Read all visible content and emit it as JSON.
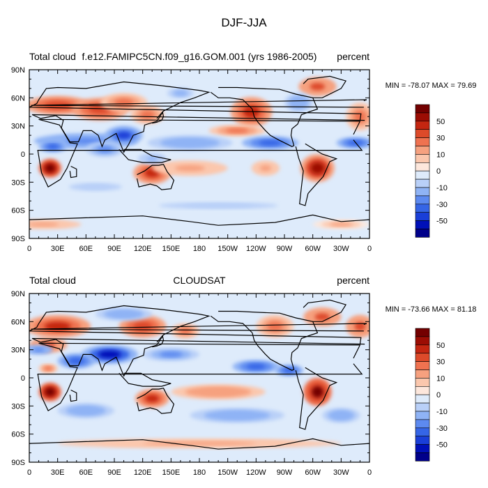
{
  "figure_title": "DJF-JJA",
  "chart_data": [
    {
      "type": "contour-map",
      "title_left": "Total cloud",
      "title_center": "f.e12.FAMIPC5CN.f09_g16.GOM.001 (yrs 1986-2005)",
      "title_right": "percent",
      "min_max": "MIN = -78.07 MAX =  79.69",
      "xlim": [
        0,
        360
      ],
      "ylim": [
        -90,
        90
      ],
      "x_ticks": [
        "0",
        "30E",
        "60E",
        "90E",
        "120E",
        "150E",
        "180",
        "150W",
        "120W",
        "90W",
        "60W",
        "30W",
        "0"
      ],
      "y_ticks": [
        "90N",
        "60N",
        "30N",
        "0",
        "30S",
        "60S",
        "90S"
      ],
      "colorbar_labels": [
        "50",
        "30",
        "10",
        "0",
        "-10",
        "-30",
        "-50"
      ],
      "blobs": [
        {
          "lon": 30,
          "lat": 52,
          "rx": 35,
          "ry": 10,
          "v": 35
        },
        {
          "lon": 75,
          "lat": 48,
          "rx": 30,
          "ry": 12,
          "v": 38
        },
        {
          "lon": 100,
          "lat": 55,
          "rx": 25,
          "ry": 10,
          "v": 28
        },
        {
          "lon": 125,
          "lat": 42,
          "rx": 18,
          "ry": 10,
          "v": 20
        },
        {
          "lon": 235,
          "lat": 45,
          "rx": 22,
          "ry": 16,
          "v": 40
        },
        {
          "lon": 305,
          "lat": 72,
          "rx": 20,
          "ry": 10,
          "v": 30
        },
        {
          "lon": 350,
          "lat": 40,
          "rx": 15,
          "ry": 15,
          "v": 25
        },
        {
          "lon": 22,
          "lat": -15,
          "rx": 12,
          "ry": 10,
          "v": 62
        },
        {
          "lon": 130,
          "lat": -20,
          "rx": 20,
          "ry": 12,
          "v": 45
        },
        {
          "lon": 305,
          "lat": -15,
          "rx": 18,
          "ry": 15,
          "v": 55
        },
        {
          "lon": 170,
          "lat": -15,
          "rx": 40,
          "ry": 8,
          "v": 15
        },
        {
          "lon": 250,
          "lat": -15,
          "rx": 15,
          "ry": 8,
          "v": 15
        },
        {
          "lon": 220,
          "lat": 25,
          "rx": 30,
          "ry": 6,
          "v": 20
        },
        {
          "lon": 60,
          "lat": 14,
          "rx": 55,
          "ry": 8,
          "v": -30
        },
        {
          "lon": 100,
          "lat": 20,
          "rx": 20,
          "ry": 10,
          "v": -45
        },
        {
          "lon": 80,
          "lat": 5,
          "rx": 20,
          "ry": 8,
          "v": -25
        },
        {
          "lon": 25,
          "lat": 8,
          "rx": 15,
          "ry": 6,
          "v": -35
        },
        {
          "lon": 170,
          "lat": 12,
          "rx": 45,
          "ry": 8,
          "v": -20
        },
        {
          "lon": 255,
          "lat": 12,
          "rx": 30,
          "ry": 7,
          "v": -40
        },
        {
          "lon": 345,
          "lat": 12,
          "rx": 20,
          "ry": 6,
          "v": -35
        },
        {
          "lon": 130,
          "lat": -5,
          "rx": 15,
          "ry": 6,
          "v": -15
        },
        {
          "lon": 70,
          "lat": -35,
          "rx": 40,
          "ry": 6,
          "v": -8
        },
        {
          "lon": 200,
          "lat": -55,
          "rx": 90,
          "ry": 5,
          "v": -10
        },
        {
          "lon": 160,
          "lat": 65,
          "rx": 20,
          "ry": 8,
          "v": -12
        },
        {
          "lon": 285,
          "lat": 55,
          "rx": 15,
          "ry": 10,
          "v": -20
        },
        {
          "lon": 15,
          "lat": -75,
          "rx": 40,
          "ry": 5,
          "v": 15
        },
        {
          "lon": 330,
          "lat": -75,
          "rx": 30,
          "ry": 5,
          "v": 12
        }
      ]
    },
    {
      "type": "contour-map",
      "title_left": "Total cloud",
      "title_center": "CLOUDSAT",
      "title_right": "percent",
      "min_max": "MIN = -73.66 MAX =  81.18",
      "xlim": [
        0,
        360
      ],
      "ylim": [
        -90,
        90
      ],
      "x_ticks": [
        "0",
        "30E",
        "60E",
        "90E",
        "120E",
        "150E",
        "180",
        "150W",
        "120W",
        "90W",
        "60W",
        "30W",
        "0"
      ],
      "y_ticks": [
        "90N",
        "60N",
        "30N",
        "0",
        "30S",
        "60S",
        "90S"
      ],
      "colorbar_labels": [
        "50",
        "30",
        "10",
        "0",
        "-10",
        "-30",
        "-50"
      ],
      "blobs": [
        {
          "lon": 30,
          "lat": 55,
          "rx": 35,
          "ry": 12,
          "v": 40
        },
        {
          "lon": 20,
          "lat": 35,
          "rx": 20,
          "ry": 8,
          "v": 30
        },
        {
          "lon": 120,
          "lat": 55,
          "rx": 25,
          "ry": 12,
          "v": 35
        },
        {
          "lon": 165,
          "lat": 50,
          "rx": 15,
          "ry": 8,
          "v": 20
        },
        {
          "lon": 260,
          "lat": 55,
          "rx": 20,
          "ry": 12,
          "v": 25
        },
        {
          "lon": 310,
          "lat": 65,
          "rx": 20,
          "ry": 10,
          "v": 30
        },
        {
          "lon": 350,
          "lat": 55,
          "rx": 15,
          "ry": 12,
          "v": 30
        },
        {
          "lon": 22,
          "lat": -15,
          "rx": 12,
          "ry": 10,
          "v": 65
        },
        {
          "lon": 130,
          "lat": -22,
          "rx": 18,
          "ry": 10,
          "v": 40
        },
        {
          "lon": 305,
          "lat": -15,
          "rx": 15,
          "ry": 15,
          "v": 60
        },
        {
          "lon": 200,
          "lat": -15,
          "rx": 50,
          "ry": 8,
          "v": 18
        },
        {
          "lon": 20,
          "lat": 10,
          "rx": 10,
          "ry": 5,
          "v": 20
        },
        {
          "lon": 85,
          "lat": 25,
          "rx": 30,
          "ry": 10,
          "v": -55
        },
        {
          "lon": 50,
          "lat": 18,
          "rx": 20,
          "ry": 8,
          "v": -35
        },
        {
          "lon": 10,
          "lat": 30,
          "rx": 15,
          "ry": 5,
          "v": -30
        },
        {
          "lon": 150,
          "lat": 25,
          "rx": 30,
          "ry": 7,
          "v": -25
        },
        {
          "lon": 240,
          "lat": 12,
          "rx": 25,
          "ry": 7,
          "v": -35
        },
        {
          "lon": 275,
          "lat": 8,
          "rx": 15,
          "ry": 6,
          "v": -40
        },
        {
          "lon": 60,
          "lat": -35,
          "rx": 30,
          "ry": 8,
          "v": -20
        },
        {
          "lon": 220,
          "lat": -40,
          "rx": 50,
          "ry": 8,
          "v": -18
        },
        {
          "lon": 100,
          "lat": 68,
          "rx": 30,
          "ry": 7,
          "v": -20
        },
        {
          "lon": 330,
          "lat": -40,
          "rx": 20,
          "ry": 8,
          "v": -20
        },
        {
          "lon": 180,
          "lat": -70,
          "rx": 150,
          "ry": 5,
          "v": 15
        }
      ]
    }
  ]
}
